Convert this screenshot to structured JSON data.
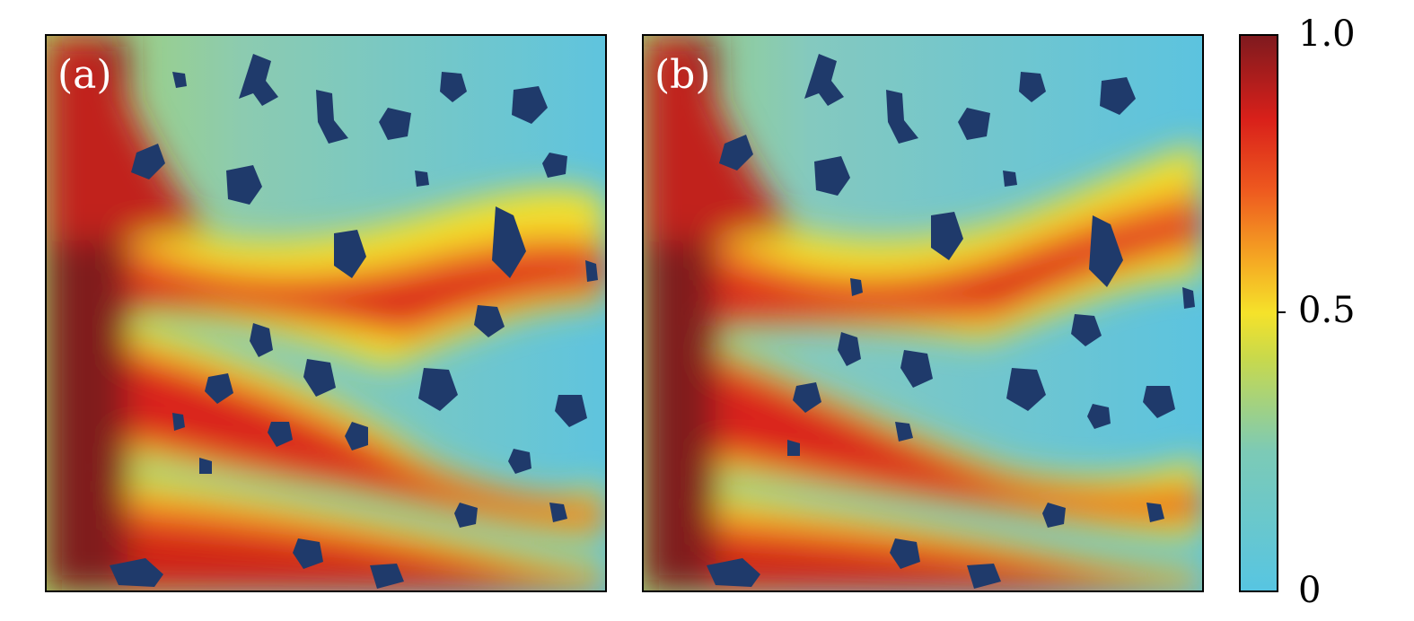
{
  "chart_data": [
    {
      "type": "heatmap",
      "panel_label": "(a)",
      "value_range": [
        0,
        1
      ],
      "grid": false,
      "description_fields": {
        "source_side": "left",
        "obstacle_color": "#1f3a6b",
        "channels": [
          "upper",
          "middle",
          "lower"
        ]
      }
    },
    {
      "type": "heatmap",
      "panel_label": "(b)",
      "value_range": [
        0,
        1
      ],
      "grid": false,
      "description_fields": {
        "source_side": "left",
        "obstacle_color": "#1f3a6b",
        "channels": [
          "upper",
          "middle",
          "lower"
        ]
      }
    }
  ],
  "colorbar": {
    "ticks": [
      {
        "value": 1.0,
        "label": "1.0"
      },
      {
        "value": 0.5,
        "label": "0.5"
      },
      {
        "value": 0,
        "label": "0"
      }
    ],
    "range": [
      0,
      1
    ],
    "colors": {
      "low": "#57c5e2",
      "mid": "#f5e22a",
      "high": "#7f1a1e"
    }
  }
}
